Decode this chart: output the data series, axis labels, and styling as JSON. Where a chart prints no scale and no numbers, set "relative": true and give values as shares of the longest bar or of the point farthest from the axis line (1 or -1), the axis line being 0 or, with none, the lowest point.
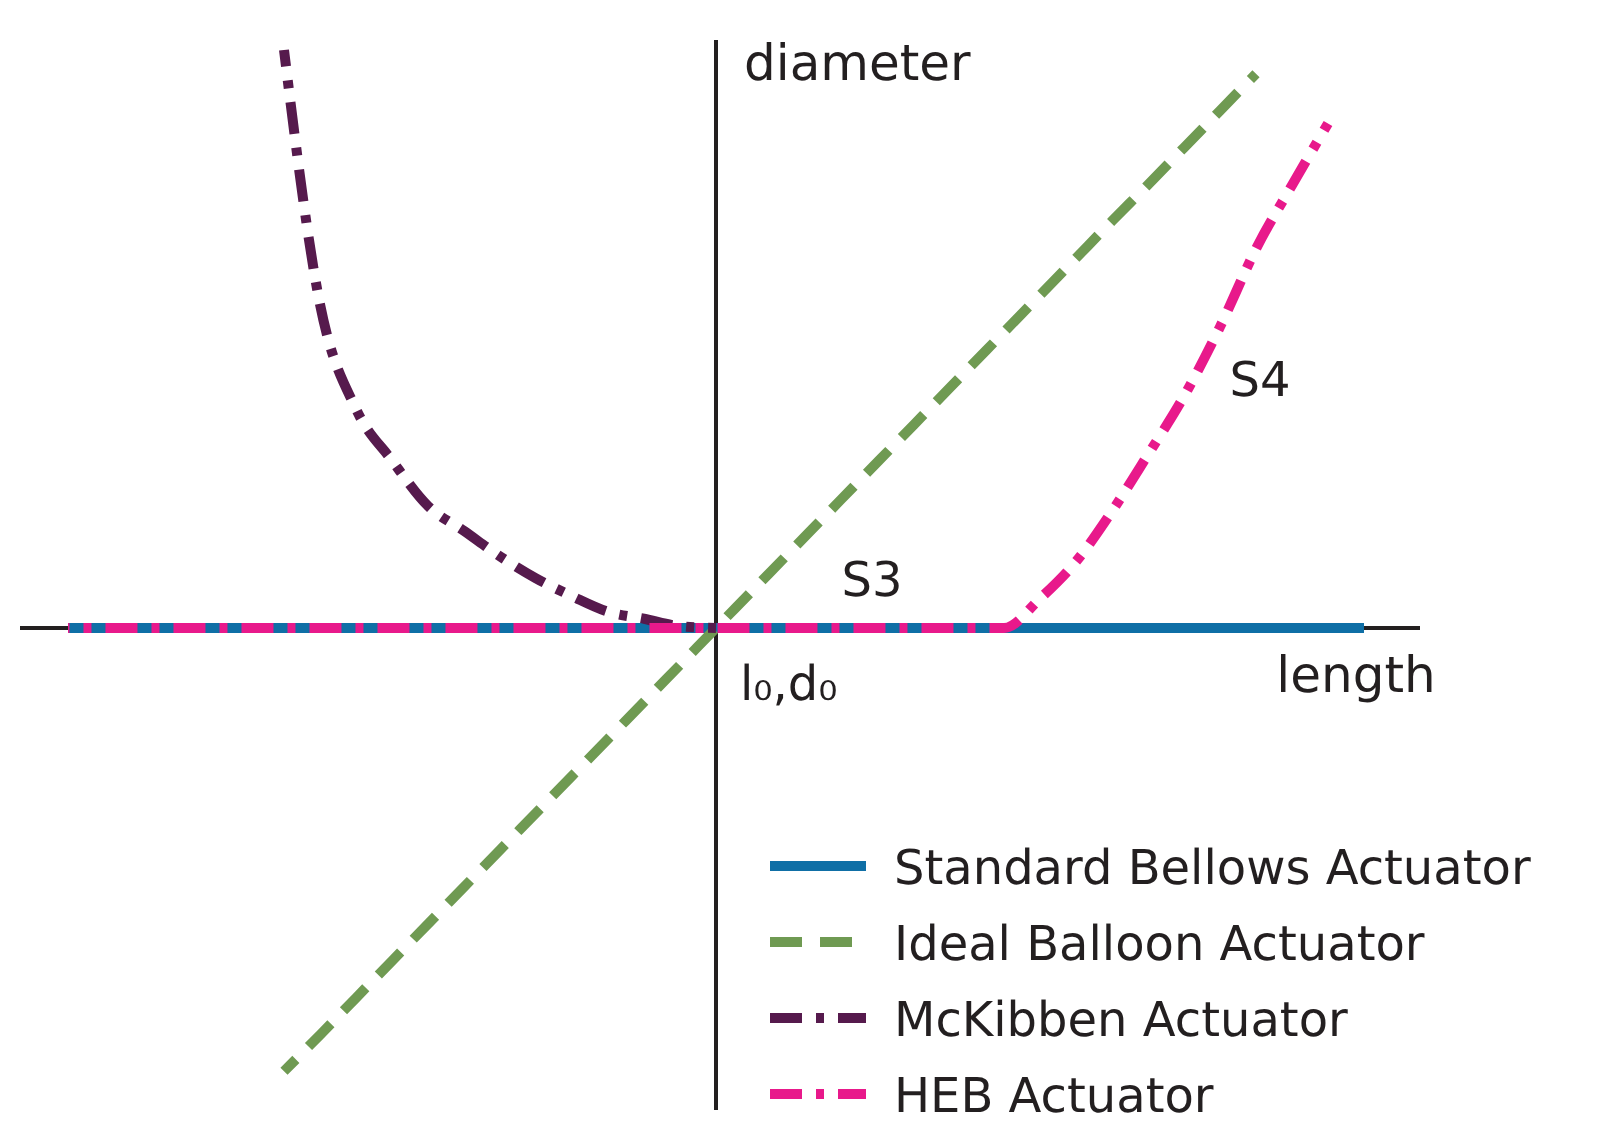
{
  "chart_data": {
    "type": "line",
    "relative": true,
    "tick_labels": false,
    "xlabel": "length",
    "ylabel": "diameter",
    "legend": "bottom right",
    "categories": [
      null,
      null,
      null,
      null,
      null,
      null,
      null,
      null,
      null,
      null,
      null,
      null,
      null,
      null,
      null,
      null,
      null,
      null,
      null,
      null,
      null,
      null,
      null,
      null,
      null,
      null,
      null,
      null,
      null,
      null,
      null,
      null,
      null,
      null,
      null,
      null,
      null
    ],
    "series": [
      {
        "name": "Standard Bellows Actuator",
        "color": "#0f6fa6",
        "line_style": "solid",
        "values": [
          0,
          0,
          0,
          0,
          0,
          0,
          0,
          0,
          0,
          0,
          0,
          0,
          0,
          0,
          0,
          0,
          0,
          0,
          0,
          0,
          0,
          0,
          0,
          0,
          0,
          0,
          0,
          0,
          0,
          0,
          0,
          0,
          0,
          0,
          0,
          0,
          0
        ]
      },
      {
        "name": "Ideal Balloon Actuator",
        "color": "#6f9a52",
        "line_style": "dashed",
        "values": [
          null,
          null,
          null,
          null,
          null,
          null,
          -0.767,
          -0.704,
          -0.64,
          -0.576,
          -0.512,
          -0.448,
          -0.384,
          -0.32,
          -0.256,
          -0.192,
          -0.128,
          -0.064,
          0,
          0.064,
          0.128,
          0.192,
          0.256,
          0.32,
          0.384,
          0.448,
          0.512,
          0.576,
          0.64,
          0.704,
          0.767,
          0.831,
          0.895,
          0.959,
          null,
          null,
          null
        ]
      },
      {
        "name": "McKibben Actuator",
        "color": "#561a4d",
        "line_style": "dashdot",
        "values": [
          null,
          null,
          null,
          null,
          null,
          null,
          1,
          0.56,
          0.379,
          0.29,
          0.211,
          0.168,
          0.124,
          0.086,
          0.055,
          0.028,
          0.016,
          0.003,
          0,
          null,
          null,
          null,
          null,
          null,
          null,
          null,
          null,
          null,
          null,
          null,
          null,
          null,
          null,
          null,
          null,
          null,
          null
        ]
      },
      {
        "name": "HEB Actuator",
        "color": "#e8198b",
        "line_style": "dashdot",
        "values": [
          0,
          0,
          0,
          0,
          0,
          0,
          0,
          0,
          0,
          0,
          0,
          0,
          0,
          0,
          0,
          0,
          0,
          0,
          0,
          0,
          0,
          0,
          0,
          0,
          0,
          0,
          0,
          0.051,
          0.115,
          0.202,
          0.3,
          0.401,
          0.521,
          0.656,
          0.766,
          0.873,
          null
        ]
      }
    ],
    "annotations": [
      "S3",
      "S4",
      "l₀,d₀"
    ]
  }
}
